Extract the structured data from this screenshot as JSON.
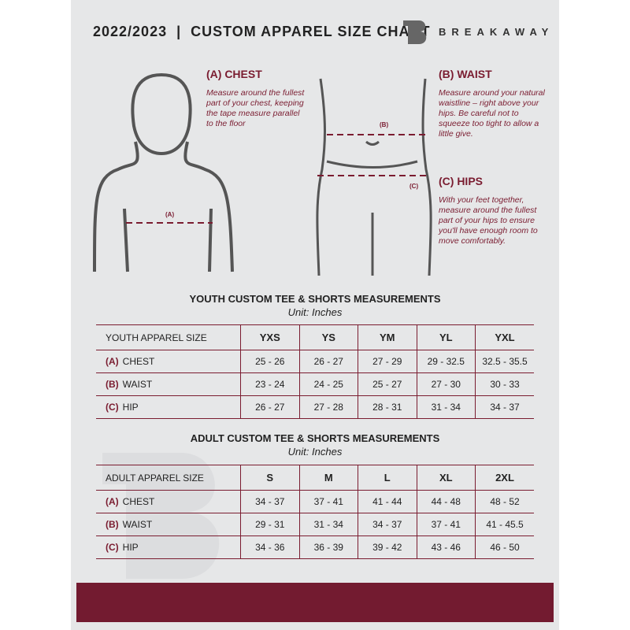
{
  "header": {
    "title": "2022/2023  |  CUSTOM APPAREL SIZE CHART",
    "brand": "BREAKAWAY",
    "logo_letter": "B"
  },
  "guide": {
    "chest": {
      "heading": "(A) CHEST",
      "text": "Measure around the fullest part of your chest, keeping the tape measure parallel to the floor",
      "marker": "(A)"
    },
    "waist": {
      "heading": "(B) WAIST",
      "text": "Measure around your natural waistline – right above your hips. Be careful not to squeeze too tight to allow a little give.",
      "marker": "(B)"
    },
    "hips": {
      "heading": "(C) HIPS",
      "text": "With your feet together, measure around the fullest part of your hips to ensure you'll have enough room to move comfortably.",
      "marker": "(C)"
    }
  },
  "youth": {
    "title": "YOUTH CUSTOM TEE & SHORTS MEASUREMENTS",
    "unit": "Unit: Inches",
    "header": [
      "YOUTH APPAREL SIZE",
      "YXS",
      "YS",
      "YM",
      "YL",
      "YXL"
    ],
    "rows": [
      {
        "code": "(A)",
        "name": "CHEST",
        "values": [
          "25 - 26",
          "26 - 27",
          "27 - 29",
          "29 - 32.5",
          "32.5 - 35.5"
        ]
      },
      {
        "code": "(B)",
        "name": "WAIST",
        "values": [
          "23 - 24",
          "24 - 25",
          "25 - 27",
          "27 - 30",
          "30 - 33"
        ]
      },
      {
        "code": "(C)",
        "name": "HIP",
        "values": [
          "26 - 27",
          "27 - 28",
          "28 - 31",
          "31 - 34",
          "34 - 37"
        ]
      }
    ]
  },
  "adult": {
    "title": "ADULT CUSTOM TEE & SHORTS MEASUREMENTS",
    "unit": "Unit: Inches",
    "header": [
      "ADULT APPAREL SIZE",
      "S",
      "M",
      "L",
      "XL",
      "2XL"
    ],
    "rows": [
      {
        "code": "(A)",
        "name": "CHEST",
        "values": [
          "34 - 37",
          "37 - 41",
          "41 - 44",
          "44 - 48",
          "48 - 52"
        ]
      },
      {
        "code": "(B)",
        "name": "WAIST",
        "values": [
          "29 - 31",
          "31 - 34",
          "34 - 37",
          "37 - 41",
          "41 - 45.5"
        ]
      },
      {
        "code": "(C)",
        "name": "HIP",
        "values": [
          "34 - 36",
          "36 - 39",
          "39 - 42",
          "43 - 46",
          "46 - 50"
        ]
      }
    ]
  },
  "colors": {
    "accent": "#7a1c30",
    "panel": "#e6e7e8"
  }
}
